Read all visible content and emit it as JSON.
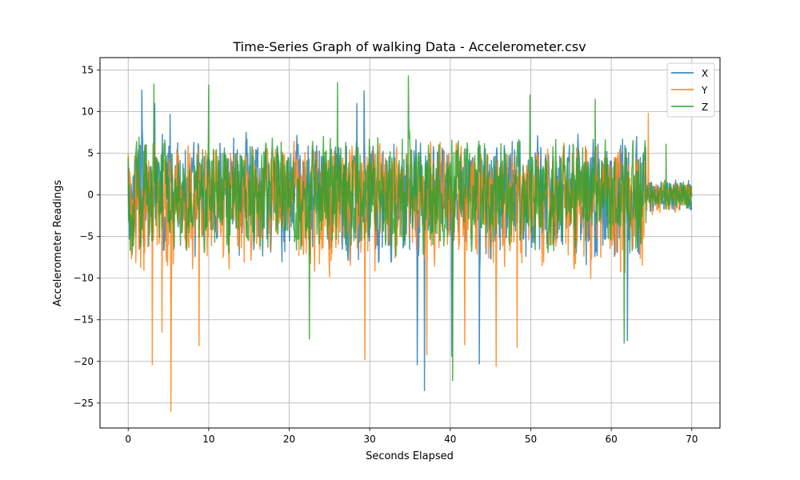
{
  "chart_data": {
    "type": "line",
    "title": "Time-Series Graph of walking Data - Accelerometer.csv",
    "xlabel": "Seconds Elapsed",
    "ylabel": "Accelerometer Readings",
    "xlim": [
      -3.5,
      73.5
    ],
    "ylim": [
      -28,
      16.5
    ],
    "xticks": [
      0,
      10,
      20,
      30,
      40,
      50,
      60,
      70
    ],
    "yticks": [
      -25,
      -20,
      -15,
      -10,
      -5,
      0,
      5,
      10,
      15
    ],
    "grid": true,
    "legend": "top-right",
    "data_range": [
      0,
      70
    ],
    "damped_after": 64.3,
    "series": [
      {
        "name": "X",
        "color": "#1f77b4",
        "seed": 11,
        "amp": [
          -9.5,
          8.2
        ],
        "peaks": [
          [
            1.7,
            12.6
          ],
          [
            3.3,
            11.0
          ],
          [
            5.2,
            9.7
          ],
          [
            28.4,
            11.0
          ],
          [
            29.3,
            12.5
          ],
          [
            36.8,
            -23.5
          ],
          [
            35.9,
            -20.4
          ],
          [
            43.6,
            -20.3
          ],
          [
            40.2,
            -19.4
          ],
          [
            62.0,
            -17.5
          ]
        ]
      },
      {
        "name": "Y",
        "color": "#ff7f0e",
        "seed": 29,
        "amp": [
          -11.0,
          7.0
        ],
        "peaks": [
          [
            3.0,
            -20.4
          ],
          [
            5.3,
            -26.0
          ],
          [
            4.2,
            -16.5
          ],
          [
            8.8,
            -18.1
          ],
          [
            29.4,
            -19.8
          ],
          [
            45.7,
            -20.6
          ],
          [
            48.3,
            -18.3
          ],
          [
            37.1,
            -19.2
          ],
          [
            64.6,
            9.8
          ],
          [
            41.8,
            -18.0
          ]
        ]
      },
      {
        "name": "Z",
        "color": "#2ca02c",
        "seed": 47,
        "amp": [
          -8.5,
          8.0
        ],
        "peaks": [
          [
            3.2,
            13.3
          ],
          [
            10.0,
            13.2
          ],
          [
            26.0,
            13.5
          ],
          [
            34.8,
            14.3
          ],
          [
            40.3,
            -22.3
          ],
          [
            49.9,
            12.0
          ],
          [
            58.0,
            11.5
          ],
          [
            61.6,
            -17.8
          ],
          [
            22.5,
            -17.3
          ],
          [
            66.8,
            6.1
          ]
        ]
      }
    ]
  }
}
